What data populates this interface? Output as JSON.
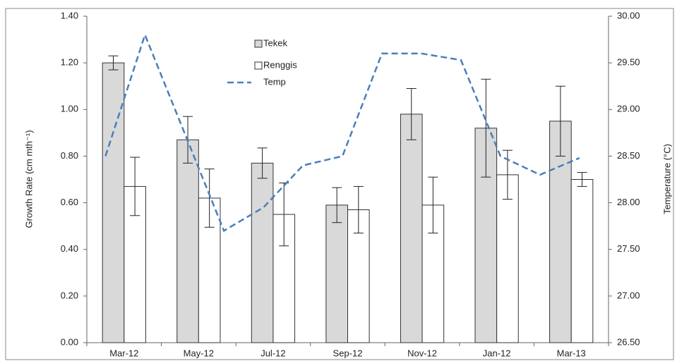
{
  "chart_data": {
    "type": "bar",
    "categories": [
      "Mar-12",
      "May-12",
      "Jul-12",
      "Sep-12",
      "Nov-12",
      "Jan-12",
      "Mar-13"
    ],
    "series": [
      {
        "name": "Tekek",
        "color": "#d9d9d9",
        "values": [
          1.2,
          0.87,
          0.77,
          0.59,
          0.98,
          0.92,
          0.95
        ],
        "errors": [
          0.03,
          0.1,
          0.065,
          0.075,
          0.11,
          0.21,
          0.15
        ]
      },
      {
        "name": "Renggis",
        "color": "#ffffff",
        "values": [
          0.67,
          0.62,
          0.55,
          0.57,
          0.59,
          0.72,
          0.7
        ],
        "errors": [
          0.125,
          0.125,
          0.135,
          0.1,
          0.12,
          0.105,
          0.03
        ]
      },
      {
        "name": "Temp",
        "type": "line",
        "axis": "y2",
        "color": "#4a7ebb",
        "x": [
          -0.25,
          0.28,
          0.81,
          1.34,
          1.87,
          2.4,
          2.93,
          3.46,
          3.99,
          4.52,
          5.05,
          5.58,
          6.11
        ],
        "values": [
          28.5,
          29.8,
          28.75,
          27.7,
          27.95,
          28.4,
          28.5,
          29.6,
          29.6,
          29.53,
          28.5,
          28.3,
          28.48
        ]
      }
    ],
    "y_label": "Growth Rate (cm mth⁻¹)",
    "y2_label": "Temperature (°C)",
    "ylim": [
      0,
      1.4
    ],
    "yticks": [
      {
        "value": 0,
        "label": "0.00"
      },
      {
        "value": 0.2,
        "label": "0.20"
      },
      {
        "value": 0.4,
        "label": "0.40"
      },
      {
        "value": 0.6,
        "label": "0.60"
      },
      {
        "value": 0.8,
        "label": "0.80"
      },
      {
        "value": 1.0,
        "label": "1.00"
      },
      {
        "value": 1.2,
        "label": "1.20"
      },
      {
        "value": 1.4,
        "label": "1.40"
      }
    ],
    "y2lim": [
      26.5,
      30
    ],
    "y2ticks": [
      {
        "value": 26.5,
        "label": "26.50"
      },
      {
        "value": 27,
        "label": "27.00"
      },
      {
        "value": 27.5,
        "label": "27.50"
      },
      {
        "value": 28,
        "label": "28.00"
      },
      {
        "value": 28.5,
        "label": "28.50"
      },
      {
        "value": 29,
        "label": "29.00"
      },
      {
        "value": 29.5,
        "label": "29.50"
      },
      {
        "value": 30,
        "label": "30.00"
      }
    ]
  }
}
